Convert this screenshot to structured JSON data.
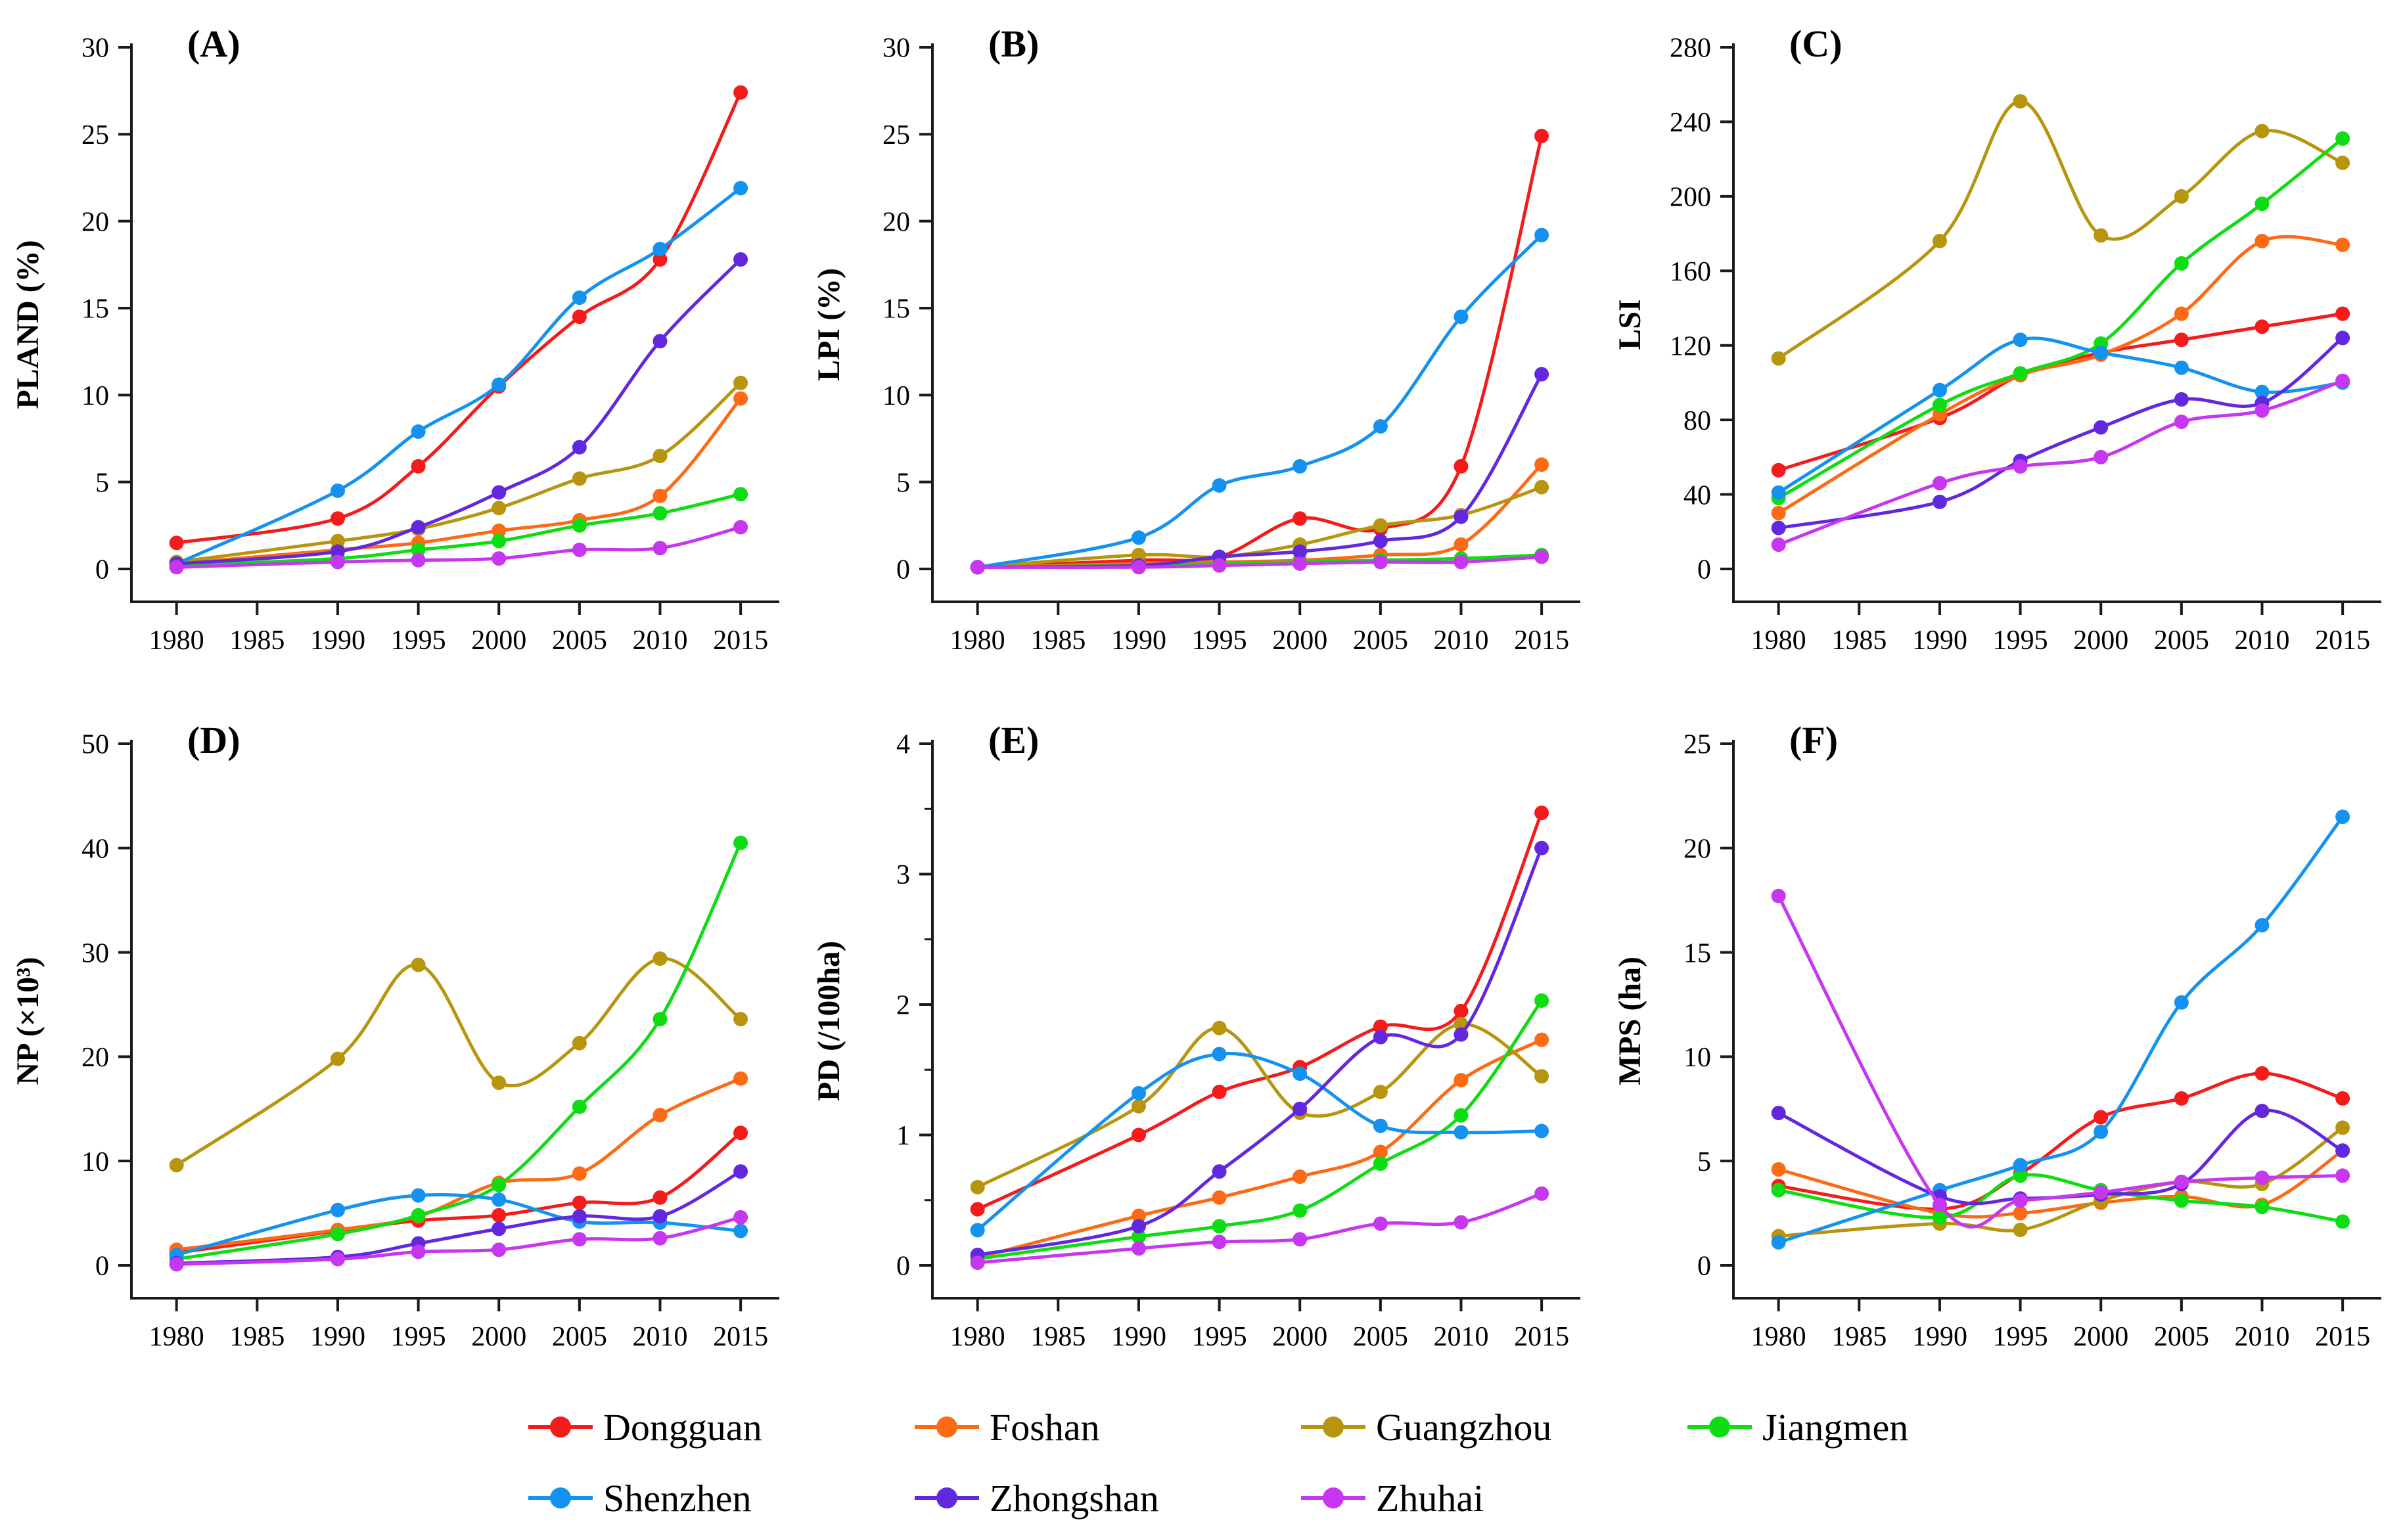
{
  "legend": {
    "items": [
      {
        "label": "Dongguan",
        "color": "#f41b1b"
      },
      {
        "label": "Foshan",
        "color": "#fc6a16"
      },
      {
        "label": "Guangzhou",
        "color": "#b7950e"
      },
      {
        "label": "Jiangmen",
        "color": "#0ddd12"
      },
      {
        "label": "Shenzhen",
        "color": "#1492f0"
      },
      {
        "label": "Zhongshan",
        "color": "#6228e0"
      },
      {
        "label": "Zhuhai",
        "color": "#c637ef"
      }
    ]
  },
  "axis_style": {
    "axis_color": "#1a1a1a",
    "tick_label_color": "#000000"
  },
  "chart_data": [
    {
      "panel": "(A)",
      "type": "line",
      "title": "",
      "xlabel": "",
      "ylabel": "PLAND (%)",
      "ylim": [
        0,
        30
      ],
      "ytick_step": 5,
      "yminor_step": null,
      "grid": false,
      "x": [
        1980,
        1990,
        1995,
        2000,
        2005,
        2010,
        2015
      ],
      "xticks": [
        1980,
        1985,
        1990,
        1995,
        2000,
        2005,
        2010,
        2015
      ],
      "series": [
        {
          "name": "Dongguan",
          "values": [
            1.5,
            2.9,
            5.9,
            10.5,
            14.5,
            17.8,
            27.4
          ]
        },
        {
          "name": "Foshan",
          "values": [
            0.3,
            1.1,
            1.5,
            2.2,
            2.8,
            4.2,
            9.8
          ]
        },
        {
          "name": "Guangzhou",
          "values": [
            0.4,
            1.6,
            2.3,
            3.5,
            5.2,
            6.5,
            10.7
          ]
        },
        {
          "name": "Jiangmen",
          "values": [
            0.2,
            0.6,
            1.1,
            1.6,
            2.5,
            3.2,
            4.3
          ]
        },
        {
          "name": "Shenzhen",
          "values": [
            0.3,
            4.5,
            7.9,
            10.6,
            15.6,
            18.4,
            21.9
          ]
        },
        {
          "name": "Zhongshan",
          "values": [
            0.3,
            1.0,
            2.4,
            4.4,
            7.0,
            13.1,
            17.8
          ]
        },
        {
          "name": "Zhuhai",
          "values": [
            0.1,
            0.4,
            0.5,
            0.6,
            1.1,
            1.2,
            2.4
          ]
        }
      ]
    },
    {
      "panel": "(B)",
      "type": "line",
      "title": "",
      "xlabel": "",
      "ylabel": "LPI (%)",
      "ylim": [
        0,
        30
      ],
      "ytick_step": 5,
      "yminor_step": null,
      "grid": false,
      "x": [
        1980,
        1990,
        1995,
        2000,
        2005,
        2010,
        2015
      ],
      "xticks": [
        1980,
        1985,
        1990,
        1995,
        2000,
        2005,
        2010,
        2015
      ],
      "series": [
        {
          "name": "Dongguan",
          "values": [
            0.1,
            0.5,
            0.7,
            2.9,
            2.3,
            5.9,
            24.9
          ]
        },
        {
          "name": "Foshan",
          "values": [
            0.1,
            0.3,
            0.4,
            0.5,
            0.8,
            1.4,
            6.0
          ]
        },
        {
          "name": "Guangzhou",
          "values": [
            0.1,
            0.8,
            0.7,
            1.4,
            2.5,
            3.1,
            4.7
          ]
        },
        {
          "name": "Jiangmen",
          "values": [
            0.1,
            0.2,
            0.3,
            0.4,
            0.5,
            0.6,
            0.8
          ]
        },
        {
          "name": "Shenzhen",
          "values": [
            0.1,
            1.8,
            4.8,
            5.9,
            8.2,
            14.5,
            19.2
          ]
        },
        {
          "name": "Zhongshan",
          "values": [
            0.1,
            0.2,
            0.7,
            1.0,
            1.6,
            3.0,
            11.2
          ]
        },
        {
          "name": "Zhuhai",
          "values": [
            0.1,
            0.1,
            0.2,
            0.3,
            0.4,
            0.4,
            0.7
          ]
        }
      ]
    },
    {
      "panel": "(C)",
      "type": "line",
      "title": "",
      "xlabel": "",
      "ylabel": "LSI",
      "ylim": [
        0,
        280
      ],
      "ytick_step": 40,
      "yminor_step": null,
      "grid": false,
      "x": [
        1980,
        1990,
        1995,
        2000,
        2005,
        2010,
        2015
      ],
      "xticks": [
        1980,
        1985,
        1990,
        1995,
        2000,
        2005,
        2010,
        2015
      ],
      "series": [
        {
          "name": "Dongguan",
          "values": [
            53,
            81,
            104,
            116,
            123,
            130,
            137
          ]
        },
        {
          "name": "Foshan",
          "values": [
            30,
            83,
            104,
            115,
            137,
            176,
            174
          ]
        },
        {
          "name": "Guangzhou",
          "values": [
            113,
            176,
            251,
            179,
            200,
            235,
            218
          ]
        },
        {
          "name": "Jiangmen",
          "values": [
            38,
            88,
            105,
            121,
            164,
            196,
            231
          ]
        },
        {
          "name": "Shenzhen",
          "values": [
            41,
            96,
            123,
            116,
            108,
            95,
            100
          ]
        },
        {
          "name": "Zhongshan",
          "values": [
            22,
            36,
            58,
            76,
            91,
            89,
            124
          ]
        },
        {
          "name": "Zhuhai",
          "values": [
            13,
            46,
            55,
            60,
            79,
            85,
            101
          ]
        }
      ]
    },
    {
      "panel": "(D)",
      "type": "line",
      "title": "",
      "xlabel": "",
      "ylabel": "NP (×10³)",
      "ylim": [
        0,
        50
      ],
      "ytick_step": 10,
      "yminor_step": null,
      "grid": false,
      "x": [
        1980,
        1990,
        1995,
        2000,
        2005,
        2010,
        2015
      ],
      "xticks": [
        1980,
        1985,
        1990,
        1995,
        2000,
        2005,
        2010,
        2015
      ],
      "series": [
        {
          "name": "Dongguan",
          "values": [
            1.2,
            3.3,
            4.3,
            4.8,
            6.0,
            6.5,
            12.7
          ]
        },
        {
          "name": "Foshan",
          "values": [
            1.5,
            3.4,
            4.7,
            7.9,
            8.8,
            14.4,
            17.9
          ]
        },
        {
          "name": "Guangzhou",
          "values": [
            9.6,
            19.8,
            28.8,
            17.5,
            21.3,
            29.4,
            23.6
          ]
        },
        {
          "name": "Jiangmen",
          "values": [
            0.6,
            3.0,
            4.8,
            7.7,
            15.2,
            23.6,
            40.5
          ]
        },
        {
          "name": "Shenzhen",
          "values": [
            1.0,
            5.3,
            6.7,
            6.3,
            4.2,
            4.1,
            3.3
          ]
        },
        {
          "name": "Zhongshan",
          "values": [
            0.2,
            0.8,
            2.1,
            3.5,
            4.7,
            4.7,
            9.0
          ]
        },
        {
          "name": "Zhuhai",
          "values": [
            0.1,
            0.6,
            1.3,
            1.5,
            2.5,
            2.6,
            4.6
          ]
        }
      ]
    },
    {
      "panel": "(E)",
      "type": "line",
      "title": "",
      "xlabel": "",
      "ylabel": "PD (/100ha)",
      "ylim": [
        0,
        4
      ],
      "ytick_step": 1,
      "yminor_step": 0.5,
      "grid": false,
      "x": [
        1980,
        1990,
        1995,
        2000,
        2005,
        2010,
        2015
      ],
      "xticks": [
        1980,
        1985,
        1990,
        1995,
        2000,
        2005,
        2010,
        2015
      ],
      "series": [
        {
          "name": "Dongguan",
          "values": [
            0.43,
            1.0,
            1.33,
            1.52,
            1.83,
            1.95,
            3.47
          ]
        },
        {
          "name": "Foshan",
          "values": [
            0.06,
            0.38,
            0.52,
            0.68,
            0.87,
            1.42,
            1.73
          ]
        },
        {
          "name": "Guangzhou",
          "values": [
            0.6,
            1.22,
            1.82,
            1.17,
            1.33,
            1.85,
            1.45
          ]
        },
        {
          "name": "Jiangmen",
          "values": [
            0.05,
            0.22,
            0.3,
            0.42,
            0.78,
            1.15,
            2.03
          ]
        },
        {
          "name": "Shenzhen",
          "values": [
            0.27,
            1.32,
            1.62,
            1.47,
            1.07,
            1.02,
            1.03
          ]
        },
        {
          "name": "Zhongshan",
          "values": [
            0.08,
            0.3,
            0.72,
            1.2,
            1.75,
            1.77,
            3.2
          ]
        },
        {
          "name": "Zhuhai",
          "values": [
            0.02,
            0.13,
            0.18,
            0.2,
            0.32,
            0.33,
            0.55
          ]
        }
      ]
    },
    {
      "panel": "(F)",
      "type": "line",
      "title": "",
      "xlabel": "",
      "ylabel": "MPS (ha)",
      "ylim": [
        0,
        25
      ],
      "ytick_step": 5,
      "yminor_step": null,
      "grid": false,
      "x": [
        1980,
        1990,
        1995,
        2000,
        2005,
        2010,
        2015
      ],
      "xticks": [
        1980,
        1985,
        1990,
        1995,
        2000,
        2005,
        2010,
        2015
      ],
      "series": [
        {
          "name": "Dongguan",
          "values": [
            3.8,
            2.7,
            4.4,
            7.1,
            8.0,
            9.2,
            8.0
          ]
        },
        {
          "name": "Foshan",
          "values": [
            4.6,
            2.5,
            2.5,
            3.0,
            3.3,
            2.9,
            5.5
          ]
        },
        {
          "name": "Guangzhou",
          "values": [
            1.4,
            2.0,
            1.7,
            3.1,
            4.0,
            3.9,
            6.6
          ]
        },
        {
          "name": "Jiangmen",
          "values": [
            3.6,
            2.3,
            4.3,
            3.6,
            3.1,
            2.8,
            2.1
          ]
        },
        {
          "name": "Shenzhen",
          "values": [
            1.1,
            3.6,
            4.8,
            6.4,
            12.6,
            16.3,
            21.5
          ]
        },
        {
          "name": "Zhongshan",
          "values": [
            7.3,
            3.3,
            3.2,
            3.4,
            3.9,
            7.4,
            5.5
          ]
        },
        {
          "name": "Zhuhai",
          "values": [
            17.7,
            2.9,
            3.1,
            3.5,
            4.0,
            4.2,
            4.3
          ]
        }
      ]
    }
  ]
}
